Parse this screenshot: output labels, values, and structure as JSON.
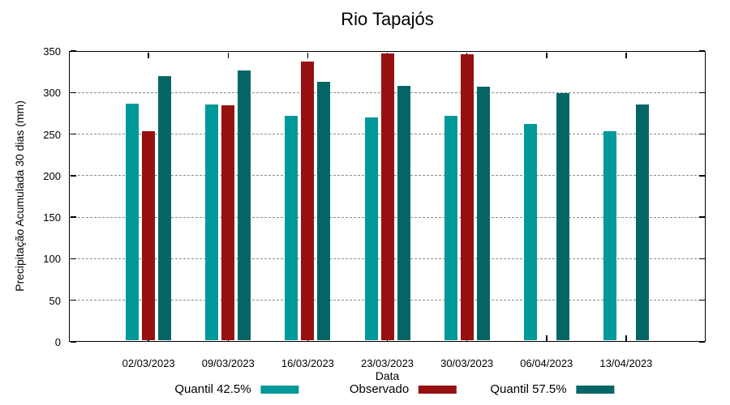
{
  "title": "Rio Tapajós",
  "chart_data": {
    "type": "bar",
    "title": "Rio Tapajós",
    "xlabel": "Data",
    "ylabel": "Precipitação Acumulada 30 dias (mm)",
    "ylim": [
      0,
      350
    ],
    "ytick_step": 50,
    "yticks": [
      0,
      50,
      100,
      150,
      200,
      250,
      300,
      350
    ],
    "grid": true,
    "legend_position": "bottom",
    "categories": [
      "02/03/2023",
      "09/03/2023",
      "16/03/2023",
      "23/03/2023",
      "30/03/2023",
      "06/04/2023",
      "13/04/2023"
    ],
    "series": [
      {
        "name": "Quantil 42.5%",
        "color": "#009999",
        "values": [
          287,
          286,
          272,
          270,
          272,
          262,
          253
        ]
      },
      {
        "name": "Observado",
        "color": "#961010",
        "values": [
          253,
          285,
          337,
          347,
          346,
          null,
          null
        ]
      },
      {
        "name": "Quantil 57.5%",
        "color": "#066666",
        "values": [
          320,
          327,
          313,
          308,
          307,
          299,
          286
        ]
      }
    ]
  }
}
